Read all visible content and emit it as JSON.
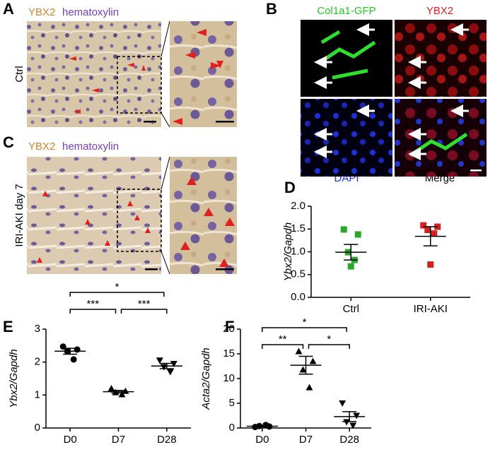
{
  "panels": {
    "A": {
      "letter": "A",
      "stain1": "YBX2",
      "stain2": "hematoxylin",
      "row_label": "Ctrl"
    },
    "B": {
      "letter": "B",
      "channel1": "Col1a1-GFP",
      "channel2": "YBX2",
      "channel3": "DAPI",
      "channel4": "Merge"
    },
    "C": {
      "letter": "C",
      "stain1": "YBX2",
      "stain2": "hematoxylin",
      "row_label": "IRI-AKI day 7"
    }
  },
  "chart_data": [
    {
      "type": "dot",
      "label": "D",
      "ylabel": "Ybx2/Gapdh",
      "categories": [
        "Ctrl",
        "IRI-AKI"
      ],
      "values": [
        [
          1.49,
          1.38,
          0.99,
          0.82,
          0.68
        ],
        [
          1.58,
          1.55,
          1.48,
          1.4,
          0.72
        ]
      ],
      "means": [
        0.99,
        1.34
      ],
      "sems": [
        0.17,
        0.21
      ],
      "markers": [
        "square",
        "square"
      ],
      "colors": [
        "#2aa82a",
        "#d42020"
      ],
      "ylim": [
        0,
        2
      ],
      "yticks": [
        {
          "value": 0,
          "label": "0.0"
        },
        {
          "value": 0.5,
          "label": "0.5"
        },
        {
          "value": 1,
          "label": "1.0"
        },
        {
          "value": 1.5,
          "label": "1.5"
        },
        {
          "value": 2,
          "label": "2.0"
        }
      ],
      "annotations": []
    },
    {
      "type": "dot",
      "label": "E",
      "ylabel": "Ybx2/Gapdh",
      "categories": [
        "D0",
        "D7",
        "D28"
      ],
      "values": [
        [
          2.47,
          2.38,
          2.33,
          2.08
        ],
        [
          1.2,
          1.12,
          1.08,
          1.02
        ],
        [
          2.05,
          1.95,
          1.85,
          1.7
        ]
      ],
      "means": [
        2.33,
        1.1,
        1.88
      ],
      "sems": [
        0.09,
        0.04,
        0.08
      ],
      "markers": [
        "circle",
        "triangle",
        "triangle-down"
      ],
      "colors": [
        "#000000",
        "#000000",
        "#000000"
      ],
      "ylim": [
        0,
        3
      ],
      "yticks": [
        0,
        1,
        2,
        3
      ],
      "annotations": [
        "***",
        "*",
        "***"
      ]
    },
    {
      "type": "dot",
      "label": "F",
      "ylabel": "Acta2/Gapdh",
      "categories": [
        "D0",
        "D7",
        "D28"
      ],
      "values": [
        [
          0.2,
          0.3,
          0.4,
          0.6
        ],
        [
          15.5,
          13.5,
          11.8,
          8.2
        ],
        [
          5.0,
          2.5,
          1.2,
          0.5
        ]
      ],
      "means": [
        0.35,
        12.7,
        2.3
      ],
      "sems": [
        0.1,
        1.8,
        1.0
      ],
      "markers": [
        "circle",
        "triangle",
        "triangle-down"
      ],
      "colors": [
        "#000000",
        "#000000",
        "#000000"
      ],
      "ylim": [
        0,
        20
      ],
      "yticks": [
        0,
        5,
        10,
        15,
        20
      ],
      "annotations": [
        "**",
        "*",
        "*"
      ]
    }
  ]
}
